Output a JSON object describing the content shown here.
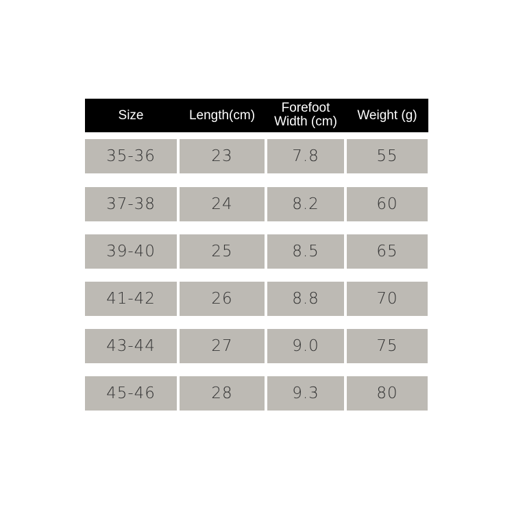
{
  "table": {
    "headers": [
      "Size",
      "Length(cm)",
      "Forefoot Width (cm)",
      "Weight (g)"
    ],
    "rows": [
      [
        "35-36",
        "23",
        "7.8",
        "55"
      ],
      [
        "37-38",
        "24",
        "8.2",
        "60"
      ],
      [
        "39-40",
        "25",
        "8.5",
        "65"
      ],
      [
        "41-42",
        "26",
        "8.8",
        "70"
      ],
      [
        "43-44",
        "27",
        "9.0",
        "75"
      ],
      [
        "45-46",
        "28",
        "9.3",
        "80"
      ]
    ]
  },
  "colors": {
    "header_bg": "#000000",
    "cell_bg": "#bdbab4"
  }
}
